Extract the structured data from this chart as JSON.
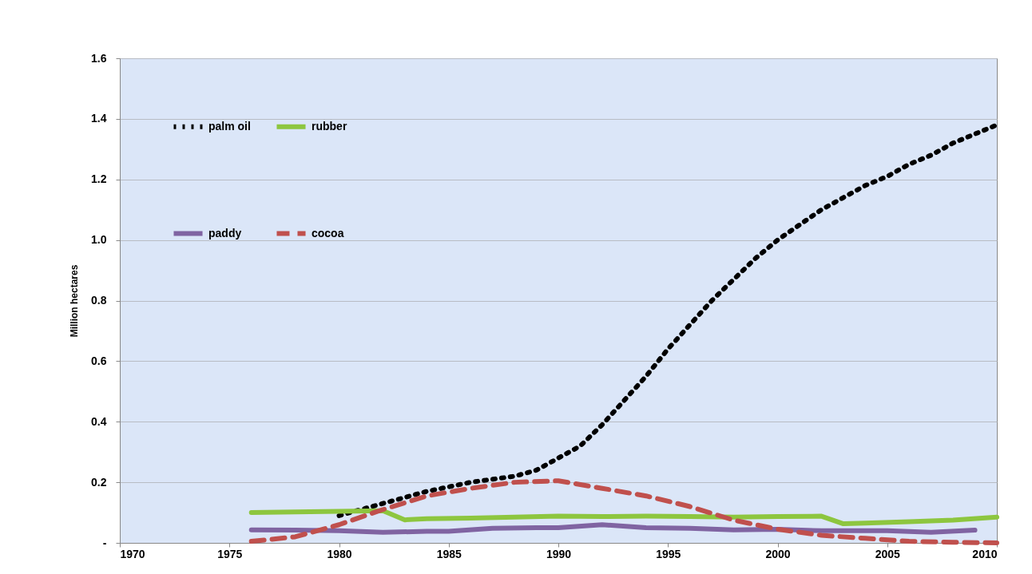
{
  "chart_data": {
    "type": "line",
    "ylabel": "Million hectares",
    "xlim": [
      1970,
      2010
    ],
    "xticks": [
      1970,
      1975,
      1980,
      1985,
      1990,
      1995,
      2000,
      2005,
      2010
    ],
    "ylim": [
      0,
      1.6
    ],
    "yticks": [
      {
        "value": 0,
        "label": "-"
      },
      0.2,
      0.4,
      0.6,
      0.8,
      {
        "value": 1,
        "label": "1.0"
      },
      1.2,
      1.4,
      1.6
    ],
    "grid": "y",
    "legend": "top left",
    "marker": "none",
    "series": [
      {
        "name": "palm oil",
        "color": "#000000",
        "line_style": "dotted",
        "x": [
          1980,
          1981,
          1982,
          1983,
          1984,
          1985,
          1986,
          1987,
          1988,
          1989,
          1990,
          1991,
          1992,
          1993,
          1994,
          1995,
          1996,
          1997,
          1998,
          1999,
          2000,
          2001,
          2002,
          2003,
          2004,
          2005,
          2006,
          2007,
          2008,
          2009,
          2010
        ],
        "values": [
          0.09,
          0.11,
          0.13,
          0.15,
          0.17,
          0.185,
          0.2,
          0.21,
          0.22,
          0.24,
          0.28,
          0.32,
          0.39,
          0.47,
          0.55,
          0.64,
          0.72,
          0.8,
          0.87,
          0.94,
          1.0,
          1.05,
          1.1,
          1.14,
          1.18,
          1.21,
          1.25,
          1.28,
          1.32,
          1.35,
          1.38
        ]
      },
      {
        "name": "rubber",
        "color": "#8dc63f",
        "line_style": "solid",
        "x": [
          1976,
          1978,
          1980,
          1982,
          1983,
          1984,
          1986,
          1988,
          1990,
          1992,
          1994,
          1996,
          1998,
          2000,
          2002,
          2003,
          2004,
          2006,
          2008,
          2010
        ],
        "values": [
          0.1,
          0.102,
          0.104,
          0.106,
          0.076,
          0.08,
          0.082,
          0.085,
          0.088,
          0.087,
          0.088,
          0.087,
          0.085,
          0.087,
          0.088,
          0.063,
          0.065,
          0.07,
          0.075,
          0.085
        ]
      },
      {
        "name": "paddy",
        "color": "#8064a2",
        "line_style": "solid",
        "x": [
          1976,
          1978,
          1980,
          1982,
          1984,
          1985,
          1987,
          1989,
          1990,
          1992,
          1994,
          1996,
          1998,
          2000,
          2002,
          2004,
          2005,
          2007,
          2009
        ],
        "values": [
          0.043,
          0.042,
          0.04,
          0.035,
          0.038,
          0.038,
          0.048,
          0.05,
          0.05,
          0.06,
          0.05,
          0.048,
          0.043,
          0.045,
          0.04,
          0.04,
          0.04,
          0.035,
          0.042
        ]
      },
      {
        "name": "cocoa",
        "color": "#c0504d",
        "line_style": "dashed",
        "x": [
          1976,
          1978,
          1980,
          1982,
          1984,
          1986,
          1988,
          1990,
          1992,
          1994,
          1996,
          1998,
          2000,
          2002,
          2004,
          2006,
          2008,
          2010
        ],
        "values": [
          0.005,
          0.02,
          0.06,
          0.11,
          0.155,
          0.18,
          0.2,
          0.205,
          0.18,
          0.155,
          0.12,
          0.075,
          0.045,
          0.025,
          0.015,
          0.005,
          0.002,
          0.0
        ]
      }
    ]
  }
}
